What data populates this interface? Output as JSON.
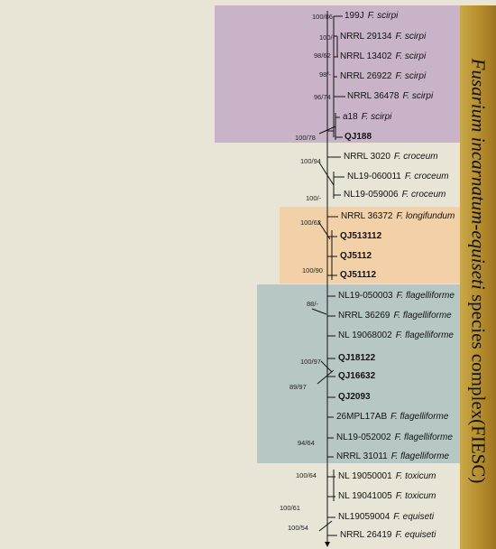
{
  "colors": {
    "background": "#e8e5d6",
    "scirpi_clade": "#c9b3c9",
    "longifundum_clade": "#f2d0a8",
    "flagelliforme_clade": "#b7c7c6",
    "complex_bar": "#b68d2c"
  },
  "complex_label": {
    "genus_species": "Fusarium incarnatum-equiseti",
    "rest": " species complex(FIESC)"
  },
  "taxa": [
    {
      "code": "199J",
      "species": "F. scirpi",
      "bold": false
    },
    {
      "code": "NRRL 29134",
      "species": "F. scirpi",
      "bold": false
    },
    {
      "code": "NRRL 13402",
      "species": "F. scirpi",
      "bold": false
    },
    {
      "code": "NRRL 26922",
      "species": "F. scirpi",
      "bold": false
    },
    {
      "code": "NRRL 36478",
      "species": "F. scirpi",
      "bold": false
    },
    {
      "code": "a18",
      "species": "F. scirpi",
      "bold": false
    },
    {
      "code": "QJ188",
      "species": "",
      "bold": true
    },
    {
      "code": "NRRL 3020",
      "species": "F. croceum",
      "bold": false
    },
    {
      "code": "NL19-060011",
      "species": "F. croceum",
      "bold": false
    },
    {
      "code": "NL19-059006",
      "species": "F. croceum",
      "bold": false
    },
    {
      "code": "NRRL 36372",
      "species": "F. longifundum",
      "bold": false
    },
    {
      "code": "QJ513112",
      "species": "",
      "bold": true
    },
    {
      "code": "QJ5112",
      "species": "",
      "bold": true
    },
    {
      "code": "QJ51112",
      "species": "",
      "bold": true
    },
    {
      "code": "NL19-050003",
      "species": "F. flagelliforme",
      "bold": false
    },
    {
      "code": "NRRL 36269",
      "species": "F. flagelliforme",
      "bold": false
    },
    {
      "code": "NL 19068002",
      "species": "F. flagelliforme",
      "bold": false
    },
    {
      "code": "QJ18122",
      "species": "",
      "bold": true
    },
    {
      "code": "QJ16632",
      "species": "",
      "bold": true
    },
    {
      "code": "QJ2093",
      "species": "",
      "bold": true
    },
    {
      "code": "26MPL17AB",
      "species": "F. flagelliforme",
      "bold": false
    },
    {
      "code": "NL19-052002",
      "species": "F. flagelliforme",
      "bold": false
    },
    {
      "code": "NRRL 31011",
      "species": "F. flagelliforme",
      "bold": false
    },
    {
      "code": "NL 19050001",
      "species": "F. toxicum",
      "bold": false
    },
    {
      "code": "NL 19041005",
      "species": "F. toxicum",
      "bold": false
    },
    {
      "code": "NL19059004",
      "species": "F. equiseti",
      "bold": false
    },
    {
      "code": "NRRL 26419",
      "species": "F. equiseti",
      "bold": false
    }
  ],
  "supports": [
    "100/86",
    "100/-",
    "98/62",
    "98/-",
    "96/74",
    "100/78",
    "100/94",
    "100/-",
    "100/62",
    "100/90",
    "88/-",
    "100/97",
    "89/97",
    "94/64",
    "100/64",
    "100/61",
    "100/54"
  ]
}
